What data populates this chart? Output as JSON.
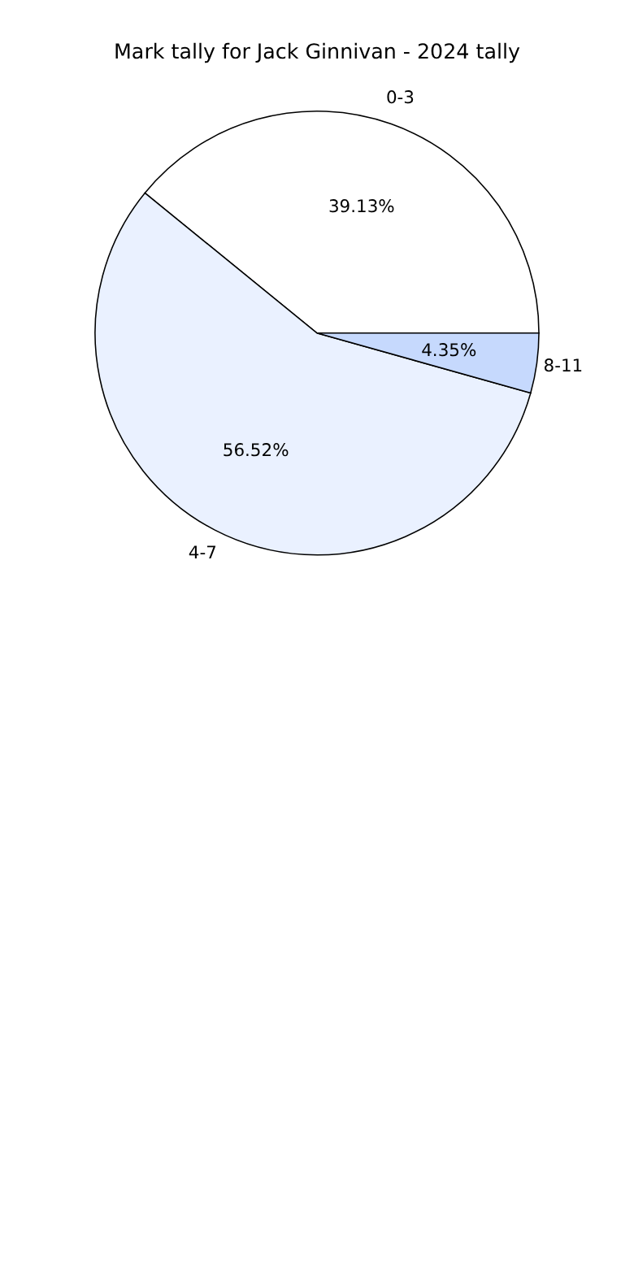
{
  "chart_data": {
    "type": "pie",
    "title": "Mark tally for Jack Ginnivan - 2024 tally",
    "categories": [
      "0-3",
      "4-7",
      "8-11"
    ],
    "values": [
      39.13,
      56.52,
      4.35
    ],
    "value_labels": [
      "39.13%",
      "56.52%",
      "4.35%"
    ],
    "colors": [
      "#ffffff",
      "#eaf1ff",
      "#c6d9fd"
    ]
  }
}
